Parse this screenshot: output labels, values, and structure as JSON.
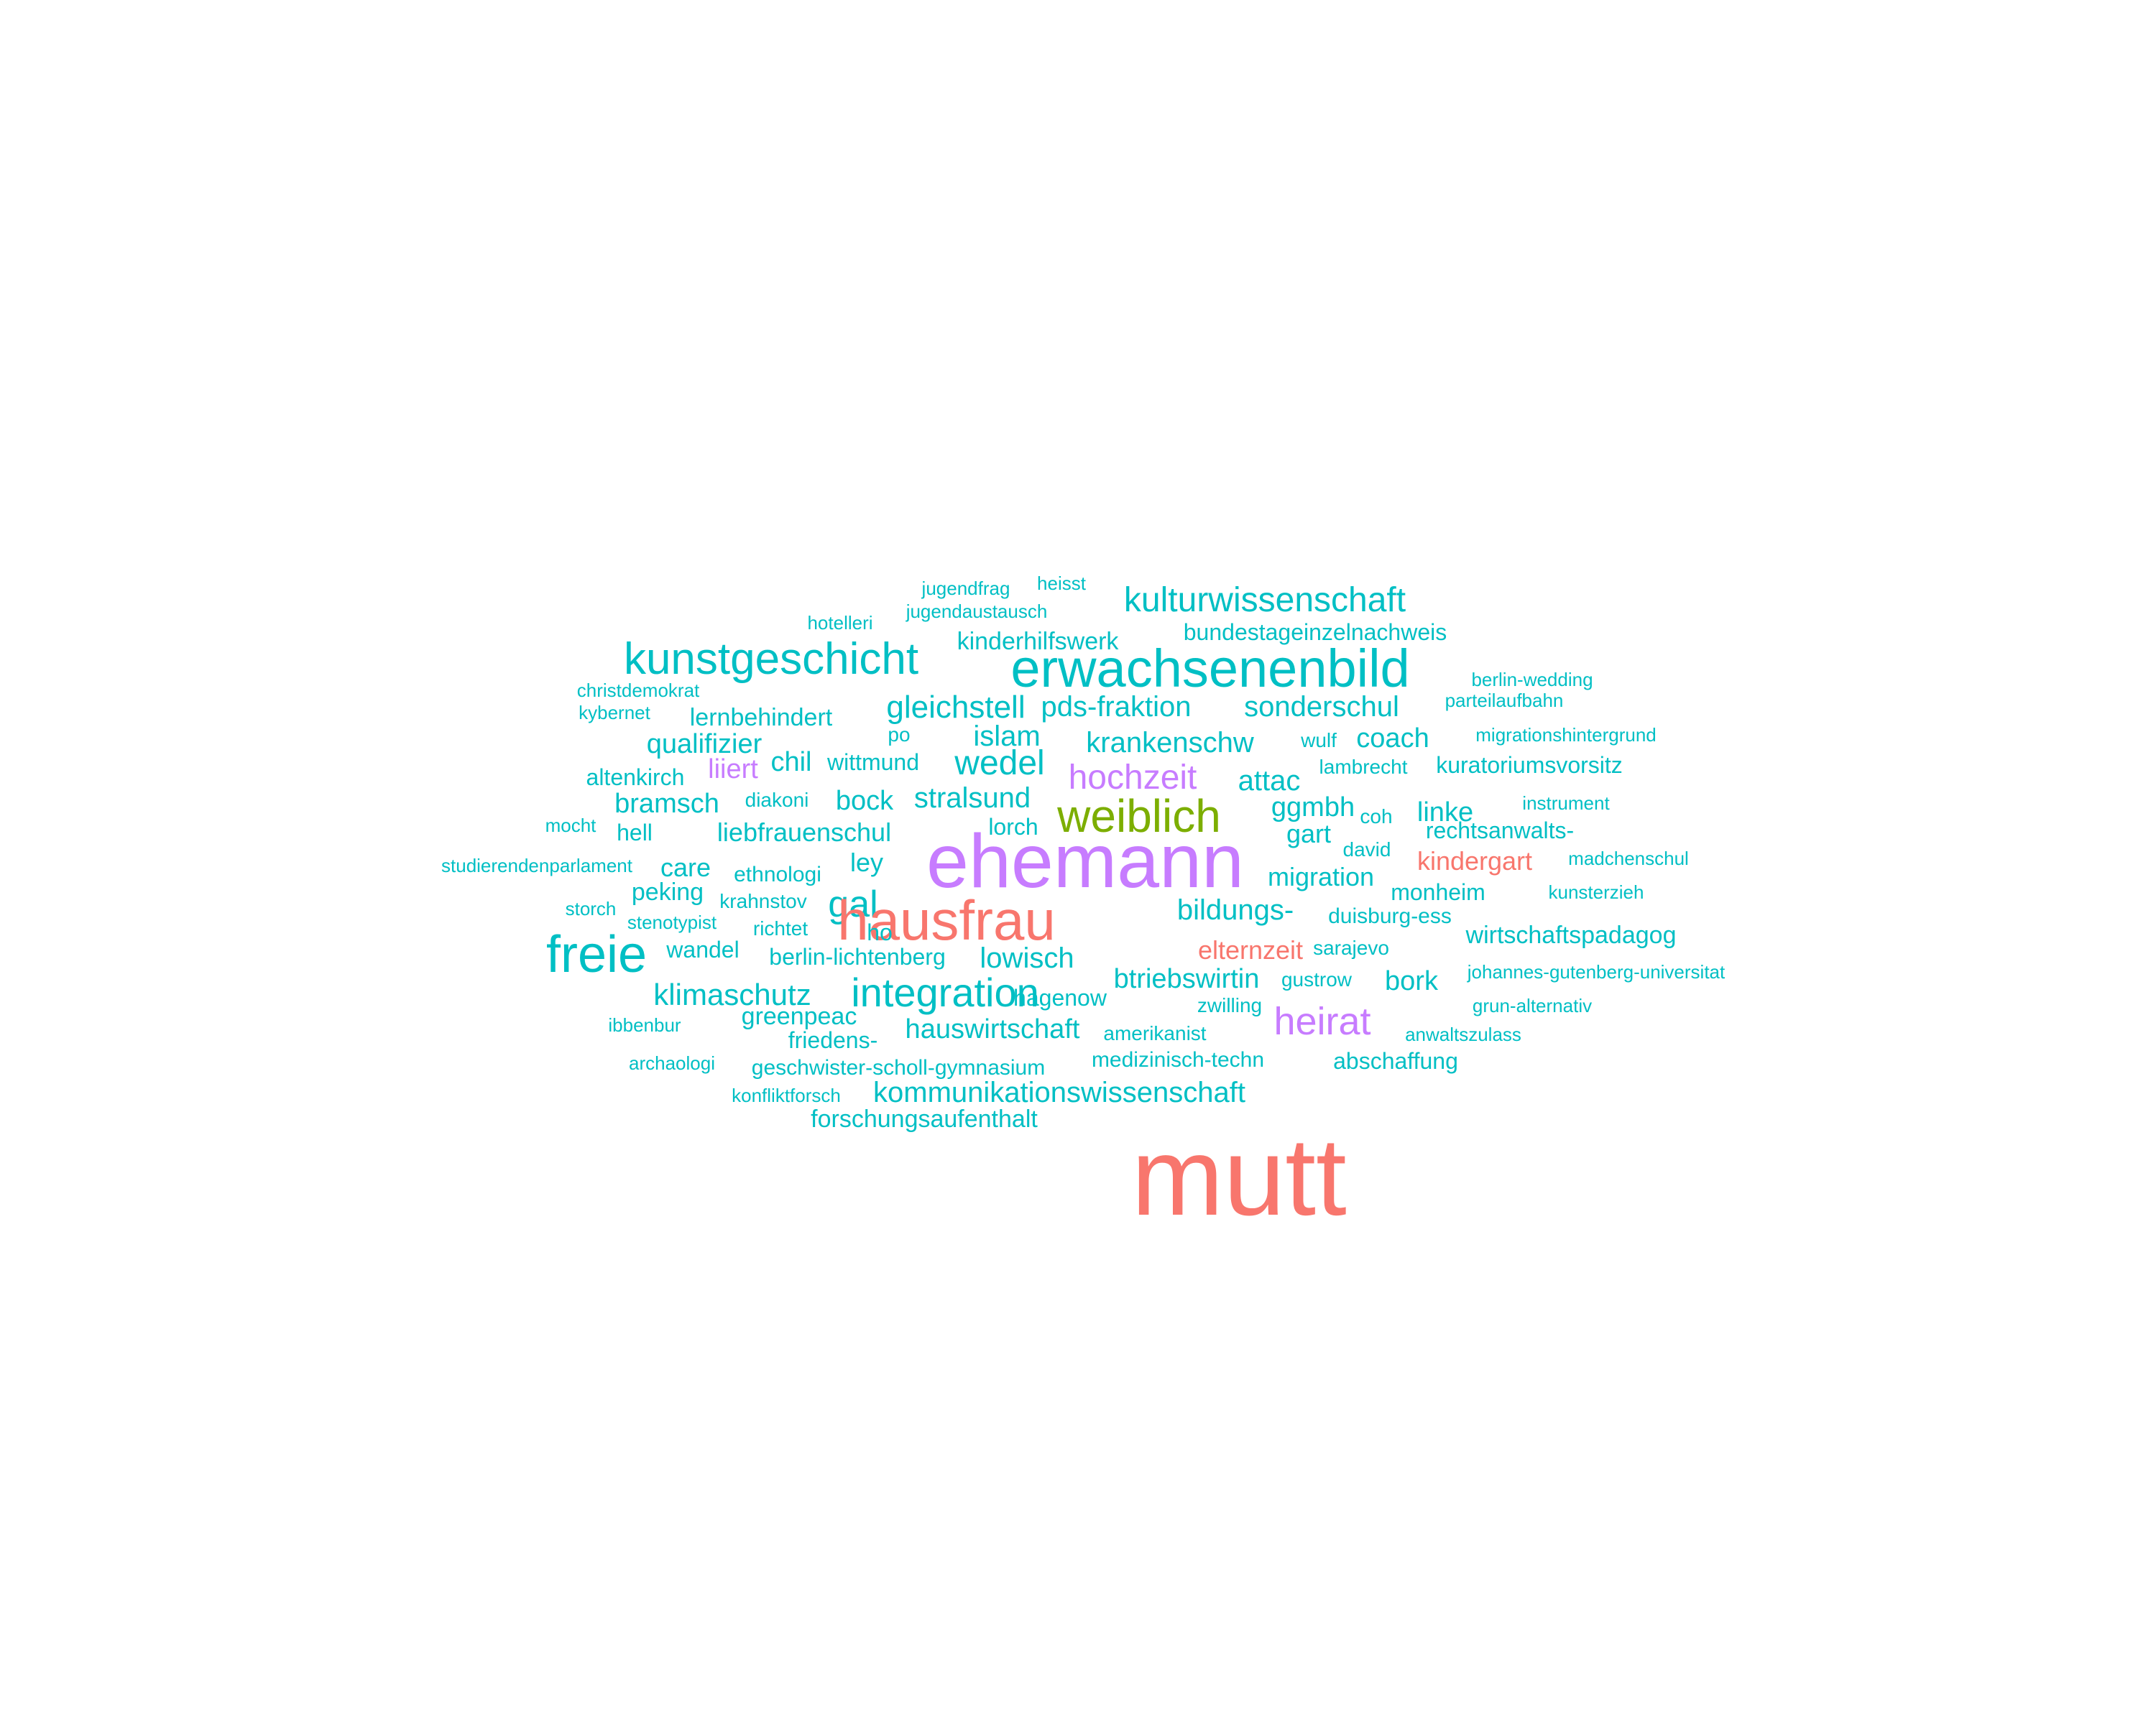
{
  "colors": {
    "teal": "#00BFC4",
    "purple": "#C77CFF",
    "red": "#F8766D",
    "green": "#7CAE00"
  },
  "words": [
    {
      "text": "jugendfrag",
      "group": "teal"
    },
    {
      "text": "heisst",
      "group": "teal"
    },
    {
      "text": "jugendaustausch",
      "group": "teal"
    },
    {
      "text": "hotelleri",
      "group": "teal"
    },
    {
      "text": "kulturwissenschaft",
      "group": "teal"
    },
    {
      "text": "bundestageinzelnachweis",
      "group": "teal"
    },
    {
      "text": "kinderhilfswerk",
      "group": "teal"
    },
    {
      "text": "kunstgeschicht",
      "group": "teal"
    },
    {
      "text": "erwachsenenbild",
      "group": "teal"
    },
    {
      "text": "berlin-wedding",
      "group": "teal"
    },
    {
      "text": "christdemokrat",
      "group": "teal"
    },
    {
      "text": "parteilaufbahn",
      "group": "teal"
    },
    {
      "text": "kybernet",
      "group": "teal"
    },
    {
      "text": "gleichstell",
      "group": "teal"
    },
    {
      "text": "pds-fraktion",
      "group": "teal"
    },
    {
      "text": "sonderschul",
      "group": "teal"
    },
    {
      "text": "lernbehindert",
      "group": "teal"
    },
    {
      "text": "po",
      "group": "teal"
    },
    {
      "text": "migrationshintergrund",
      "group": "teal"
    },
    {
      "text": "wulf",
      "group": "teal"
    },
    {
      "text": "islam",
      "group": "teal"
    },
    {
      "text": "krankenschw",
      "group": "teal"
    },
    {
      "text": "coach",
      "group": "teal"
    },
    {
      "text": "qualifizier",
      "group": "teal"
    },
    {
      "text": "chil",
      "group": "teal"
    },
    {
      "text": "wittmund",
      "group": "teal"
    },
    {
      "text": "wedel",
      "group": "teal"
    },
    {
      "text": "liiert",
      "group": "purple"
    },
    {
      "text": "hochzeit",
      "group": "purple"
    },
    {
      "text": "lambrecht",
      "group": "teal"
    },
    {
      "text": "kuratoriumsvorsitz",
      "group": "teal"
    },
    {
      "text": "altenkirch",
      "group": "teal"
    },
    {
      "text": "attac",
      "group": "teal"
    },
    {
      "text": "stralsund",
      "group": "teal"
    },
    {
      "text": "bramsch",
      "group": "teal"
    },
    {
      "text": "diakoni",
      "group": "teal"
    },
    {
      "text": "bock",
      "group": "teal"
    },
    {
      "text": "weiblich",
      "group": "green"
    },
    {
      "text": "ggmbh",
      "group": "teal"
    },
    {
      "text": "instrument",
      "group": "teal"
    },
    {
      "text": "coh",
      "group": "teal"
    },
    {
      "text": "linke",
      "group": "teal"
    },
    {
      "text": "mocht",
      "group": "teal"
    },
    {
      "text": "hell",
      "group": "teal"
    },
    {
      "text": "liebfrauenschul",
      "group": "teal"
    },
    {
      "text": "lorch",
      "group": "teal"
    },
    {
      "text": "gart",
      "group": "teal"
    },
    {
      "text": "rechtsanwalts-",
      "group": "teal"
    },
    {
      "text": "david",
      "group": "teal"
    },
    {
      "text": "ehemann",
      "group": "purple"
    },
    {
      "text": "madchenschul",
      "group": "teal"
    },
    {
      "text": "studierendenparlament",
      "group": "teal"
    },
    {
      "text": "care",
      "group": "teal"
    },
    {
      "text": "ley",
      "group": "teal"
    },
    {
      "text": "kindergart",
      "group": "red"
    },
    {
      "text": "ethnologi",
      "group": "teal"
    },
    {
      "text": "migration",
      "group": "teal"
    },
    {
      "text": "kunsterzieh",
      "group": "teal"
    },
    {
      "text": "peking",
      "group": "teal"
    },
    {
      "text": "monheim",
      "group": "teal"
    },
    {
      "text": "gal",
      "group": "teal"
    },
    {
      "text": "krahnstov",
      "group": "teal"
    },
    {
      "text": "storch",
      "group": "teal"
    },
    {
      "text": "bildungs-",
      "group": "teal"
    },
    {
      "text": "hausfrau",
      "group": "red"
    },
    {
      "text": "duisburg-ess",
      "group": "teal"
    },
    {
      "text": "stenotypist",
      "group": "teal"
    },
    {
      "text": "richtet",
      "group": "teal"
    },
    {
      "text": "ho",
      "group": "teal"
    },
    {
      "text": "wirtschaftspadagog",
      "group": "teal"
    },
    {
      "text": "freie",
      "group": "teal"
    },
    {
      "text": "wandel",
      "group": "teal"
    },
    {
      "text": "elternzeit",
      "group": "red"
    },
    {
      "text": "sarajevo",
      "group": "teal"
    },
    {
      "text": "berlin-lichtenberg",
      "group": "teal"
    },
    {
      "text": "lowisch",
      "group": "teal"
    },
    {
      "text": "johannes-gutenberg-universitat",
      "group": "teal"
    },
    {
      "text": "btriebswirtin",
      "group": "teal"
    },
    {
      "text": "gustrow",
      "group": "teal"
    },
    {
      "text": "bork",
      "group": "teal"
    },
    {
      "text": "integration",
      "group": "teal"
    },
    {
      "text": "klimaschutz",
      "group": "teal"
    },
    {
      "text": "hagenow",
      "group": "teal"
    },
    {
      "text": "zwilling",
      "group": "teal"
    },
    {
      "text": "grun-alternativ",
      "group": "teal"
    },
    {
      "text": "greenpeac",
      "group": "teal"
    },
    {
      "text": "heirat",
      "group": "purple"
    },
    {
      "text": "ibbenbur",
      "group": "teal"
    },
    {
      "text": "hauswirtschaft",
      "group": "teal"
    },
    {
      "text": "amerikanist",
      "group": "teal"
    },
    {
      "text": "anwaltszulass",
      "group": "teal"
    },
    {
      "text": "friedens-",
      "group": "teal"
    },
    {
      "text": "medizinisch-techn",
      "group": "teal"
    },
    {
      "text": "abschaffung",
      "group": "teal"
    },
    {
      "text": "archaologi",
      "group": "teal"
    },
    {
      "text": "geschwister-scholl-gymnasium",
      "group": "teal"
    },
    {
      "text": "kommunikationswissenschaft",
      "group": "teal"
    },
    {
      "text": "konfliktforsch",
      "group": "teal"
    },
    {
      "text": "forschungsaufenthalt",
      "group": "teal"
    },
    {
      "text": "mutt",
      "group": "red"
    }
  ]
}
